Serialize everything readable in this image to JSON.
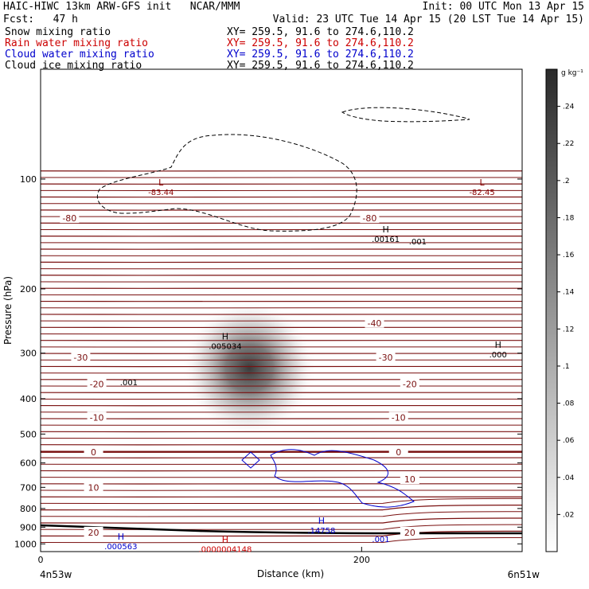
{
  "header": {
    "line1_left": "HAIC-HIWC 13km ARW-GFS init   NCAR/MMM",
    "line1_right": "Init: 00 UTC Mon 13 Apr 15",
    "line2_left": "Fcst:   47 h",
    "line2_right": "Valid: 23 UTC Tue 14 Apr 15 (20 LST Tue 14 Apr 15)",
    "fields": [
      {
        "name": "Snow mixing ratio",
        "xy": "XY= 259.5, 91.6 to 274.6,110.2",
        "color": "#000000"
      },
      {
        "name": "Rain water mixing ratio",
        "xy": "XY= 259.5, 91.6 to 274.6,110.2",
        "color": "#cc0000"
      },
      {
        "name": "Cloud water mixing ratio",
        "xy": "XY= 259.5, 91.6 to 274.6,110.2",
        "color": "#0000cc"
      },
      {
        "name": "Cloud ice mixing ratio",
        "xy": "XY= 259.5, 91.6 to 274.6,110.2",
        "color": "#000000"
      }
    ]
  },
  "chart_data": {
    "type": "heatmap",
    "xlabel": "Distance (km)",
    "ylabel": "Pressure (hPa)",
    "xlim": [
      0,
      300
    ],
    "ylim": [
      1050,
      50
    ],
    "y_log_scale": true,
    "x_ticks": [
      0,
      200
    ],
    "y_ticks": [
      100,
      200,
      300,
      400,
      500,
      600,
      700,
      800,
      900,
      1000
    ],
    "x_end_labels": [
      "4n53w",
      "6n51w"
    ],
    "colorbar": {
      "units": "g kg⁻¹",
      "ticks": [
        ".02",
        ".04",
        ".06",
        ".08",
        ".1",
        ".12",
        ".14",
        ".16",
        ".18",
        ".2",
        ".22",
        ".24"
      ],
      "values": [
        0.02,
        0.04,
        0.06,
        0.08,
        0.1,
        0.12,
        0.14,
        0.16,
        0.18,
        0.2,
        0.22,
        0.24
      ],
      "max": 0.26
    },
    "snow_core": {
      "x": 130,
      "p": 330,
      "peak": 0.25
    },
    "temperature_labels": [
      {
        "text": "-80",
        "x": 18,
        "p": 128
      },
      {
        "text": "-80",
        "x": 205,
        "p": 128
      },
      {
        "text": "-40",
        "x": 208,
        "p": 248
      },
      {
        "text": "-30",
        "x": 25,
        "p": 308
      },
      {
        "text": "-30",
        "x": 215,
        "p": 308
      },
      {
        "text": "-20",
        "x": 35,
        "p": 365
      },
      {
        "text": "-20",
        "x": 230,
        "p": 365
      },
      {
        "text": "-10",
        "x": 35,
        "p": 450
      },
      {
        "text": "-10",
        "x": 223,
        "p": 450
      },
      {
        "text": "0",
        "x": 33,
        "p": 560
      },
      {
        "text": "0",
        "x": 223,
        "p": 560
      },
      {
        "text": "10",
        "x": 230,
        "p": 665
      },
      {
        "text": "10",
        "x": 33,
        "p": 700
      },
      {
        "text": "20",
        "x": 33,
        "p": 930
      },
      {
        "text": "20",
        "x": 230,
        "p": 930
      }
    ],
    "extrema": [
      {
        "mark": "L",
        "value": "-83.44",
        "x": 75,
        "p": 104,
        "color": "#8b0000"
      },
      {
        "mark": "L",
        "value": "-82.45",
        "x": 275,
        "p": 104,
        "color": "#8b0000"
      },
      {
        "mark": "H",
        "value": ".00161",
        "x": 215,
        "p": 140,
        "color": "#000000"
      },
      {
        "mark": "H",
        "value": ".005034",
        "x": 115,
        "p": 275,
        "color": "#000000"
      },
      {
        "mark": "H",
        "value": ".000",
        "x": 285,
        "p": 290,
        "color": "#000000"
      },
      {
        "mark": "H",
        "value": ".14758",
        "x": 175,
        "p": 880,
        "color": "#0000cc"
      },
      {
        "mark": "H",
        "value": ".000563",
        "x": 50,
        "p": 975,
        "color": "#0000cc"
      },
      {
        "mark": "H",
        "value": ".0000004148",
        "x": 115,
        "p": 990,
        "color": "#cc0000"
      }
    ],
    "contour_labels": [
      {
        "text": ".001",
        "x": 235,
        "p": 148,
        "color": "#000000"
      },
      {
        "text": ".001",
        "x": 55,
        "p": 360,
        "color": "#000000"
      },
      {
        "text": ".001",
        "x": 212,
        "p": 968,
        "color": "#0000cc"
      }
    ]
  }
}
